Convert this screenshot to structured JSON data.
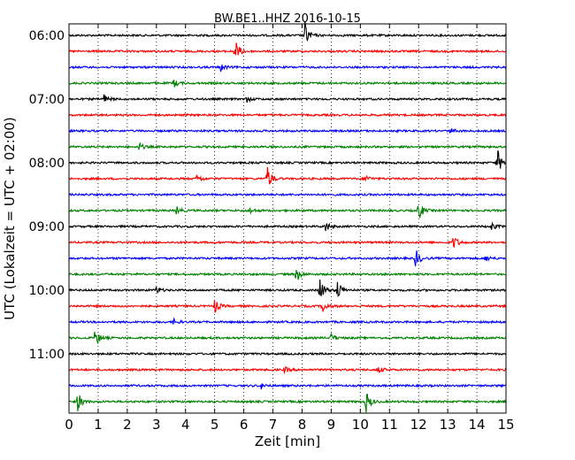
{
  "chart_data": {
    "type": "line",
    "title": "BW.BE1..HHZ 2016-10-15",
    "xlabel": "Zeit  [min]",
    "ylabel": "UTC (Lokalzeit = UTC + 02:00)",
    "xlim": [
      0,
      15
    ],
    "x_ticks": [
      "0",
      "1",
      "2",
      "3",
      "4",
      "5",
      "6",
      "7",
      "8",
      "9",
      "10",
      "11",
      "12",
      "13",
      "14",
      "15"
    ],
    "y_ticks": [
      "06:00",
      "07:00",
      "08:00",
      "09:00",
      "10:00",
      "11:00"
    ],
    "grid": "vertical dotted",
    "colors": [
      "#000000",
      "#ff0000",
      "#0000ff",
      "#008000"
    ],
    "traces": [
      {
        "start": "06:00",
        "events": [
          {
            "min": 8.1,
            "amp": 1.0
          }
        ]
      },
      {
        "start": "06:15",
        "events": [
          {
            "min": 5.7,
            "amp": 0.9
          }
        ]
      },
      {
        "start": "06:30",
        "events": [
          {
            "min": 5.2,
            "amp": 0.3
          }
        ]
      },
      {
        "start": "06:45",
        "events": [
          {
            "min": 3.6,
            "amp": 0.3
          }
        ]
      },
      {
        "start": "07:00",
        "events": [
          {
            "min": 1.2,
            "amp": 0.35
          },
          {
            "min": 6.1,
            "amp": 0.2
          }
        ]
      },
      {
        "start": "07:15",
        "events": []
      },
      {
        "start": "07:30",
        "events": [
          {
            "min": 13.1,
            "amp": 0.2
          }
        ]
      },
      {
        "start": "07:45",
        "events": [
          {
            "min": 2.4,
            "amp": 0.3
          }
        ]
      },
      {
        "start": "08:00",
        "events": [
          {
            "min": 14.7,
            "amp": 1.0
          }
        ]
      },
      {
        "start": "08:15",
        "events": [
          {
            "min": 6.8,
            "amp": 1.0
          },
          {
            "min": 4.4,
            "amp": 0.3
          },
          {
            "min": 10.2,
            "amp": 0.25
          }
        ]
      },
      {
        "start": "08:30",
        "events": []
      },
      {
        "start": "08:45",
        "events": [
          {
            "min": 12.0,
            "amp": 0.75
          },
          {
            "min": 3.7,
            "amp": 0.3
          },
          {
            "min": 6.2,
            "amp": 0.25
          }
        ]
      },
      {
        "start": "09:00",
        "events": [
          {
            "min": 8.8,
            "amp": 0.4
          },
          {
            "min": 14.5,
            "amp": 0.3
          }
        ]
      },
      {
        "start": "09:15",
        "events": [
          {
            "min": 13.2,
            "amp": 0.55
          }
        ]
      },
      {
        "start": "09:30",
        "events": [
          {
            "min": 11.9,
            "amp": 0.7
          },
          {
            "min": 14.3,
            "amp": 0.25
          }
        ]
      },
      {
        "start": "09:45",
        "events": [
          {
            "min": 7.8,
            "amp": 0.6
          }
        ]
      },
      {
        "start": "10:00",
        "events": [
          {
            "min": 8.6,
            "amp": 1.0
          },
          {
            "min": 9.2,
            "amp": 0.9
          },
          {
            "min": 3.0,
            "amp": 0.25
          }
        ]
      },
      {
        "start": "10:15",
        "events": [
          {
            "min": 5.0,
            "amp": 0.55
          },
          {
            "min": 8.7,
            "amp": 0.5
          }
        ]
      },
      {
        "start": "10:30",
        "events": [
          {
            "min": 3.6,
            "amp": 0.2
          }
        ]
      },
      {
        "start": "10:45",
        "events": [
          {
            "min": 0.9,
            "amp": 0.7
          },
          {
            "min": 9.0,
            "amp": 0.3
          }
        ]
      },
      {
        "start": "11:00",
        "events": []
      },
      {
        "start": "11:15",
        "events": [
          {
            "min": 10.6,
            "amp": 0.3
          },
          {
            "min": 7.4,
            "amp": 0.2
          }
        ]
      },
      {
        "start": "11:30",
        "events": [
          {
            "min": 6.6,
            "amp": 0.2
          }
        ]
      },
      {
        "start": "11:45",
        "events": [
          {
            "min": 0.3,
            "amp": 0.7
          },
          {
            "min": 10.2,
            "amp": 0.8
          }
        ]
      }
    ]
  }
}
